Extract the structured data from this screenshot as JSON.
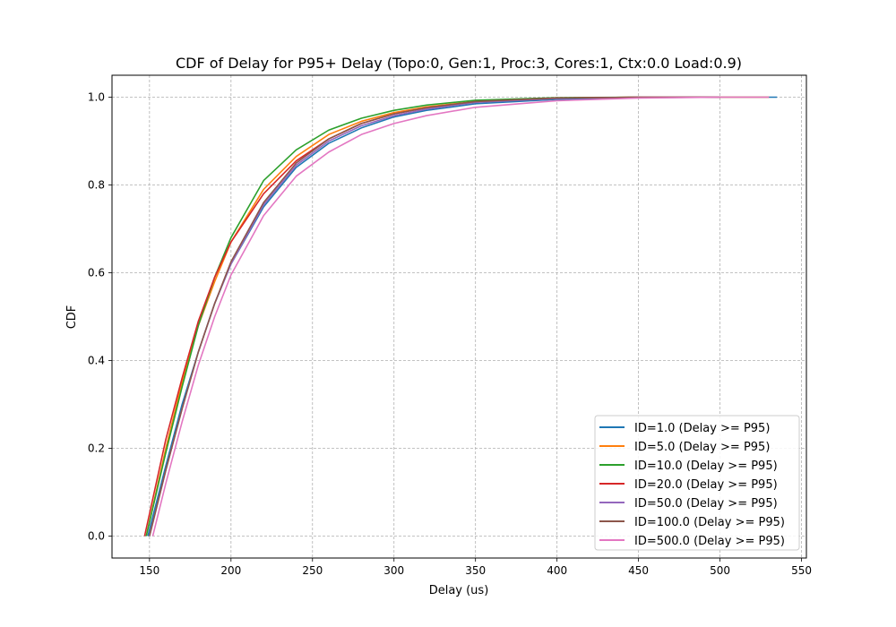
{
  "chart_data": {
    "type": "line",
    "title": "CDF of Delay for P95+ Delay (Topo:0, Gen:1, Proc:3, Cores:1, Ctx:0.0 Load:0.9)",
    "xlabel": "Delay (us)",
    "ylabel": "CDF",
    "xlim": [
      127,
      553
    ],
    "ylim": [
      -0.05,
      1.05
    ],
    "xticks": [
      150,
      200,
      250,
      300,
      350,
      400,
      450,
      500,
      550
    ],
    "yticks": [
      0.0,
      0.2,
      0.4,
      0.6,
      0.8,
      1.0
    ],
    "xtick_labels": [
      "150",
      "200",
      "250",
      "300",
      "350",
      "400",
      "450",
      "500",
      "550"
    ],
    "ytick_labels": [
      "0.0",
      "0.2",
      "0.4",
      "0.6",
      "0.8",
      "1.0"
    ],
    "grid": true,
    "legend_position": "lower-right",
    "series": [
      {
        "name": "ID=1.0 (Delay >= P95)",
        "color": "#1f77b4",
        "x": [
          149,
          160,
          170,
          180,
          190,
          200,
          220,
          240,
          260,
          280,
          300,
          320,
          350,
          400,
          450,
          500,
          535
        ],
        "y": [
          0.0,
          0.16,
          0.3,
          0.42,
          0.53,
          0.62,
          0.75,
          0.84,
          0.895,
          0.93,
          0.955,
          0.97,
          0.985,
          0.995,
          0.999,
          1.0,
          1.0
        ]
      },
      {
        "name": "ID=5.0 (Delay >= P95)",
        "color": "#ff7f0e",
        "x": [
          148,
          160,
          170,
          180,
          190,
          200,
          220,
          240,
          260,
          280,
          300,
          320,
          350,
          400,
          450,
          500,
          530
        ],
        "y": [
          0.0,
          0.2,
          0.35,
          0.48,
          0.58,
          0.67,
          0.79,
          0.865,
          0.915,
          0.945,
          0.965,
          0.978,
          0.99,
          0.998,
          1.0,
          1.0,
          1.0
        ]
      },
      {
        "name": "ID=10.0 (Delay >= P95)",
        "color": "#2ca02c",
        "x": [
          148,
          160,
          170,
          180,
          190,
          200,
          220,
          240,
          260,
          280,
          300,
          320,
          350,
          400,
          450
        ],
        "y": [
          0.0,
          0.19,
          0.34,
          0.48,
          0.59,
          0.68,
          0.81,
          0.88,
          0.925,
          0.952,
          0.97,
          0.982,
          0.993,
          0.999,
          1.0
        ]
      },
      {
        "name": "ID=20.0 (Delay >= P95)",
        "color": "#d62728",
        "x": [
          147,
          160,
          170,
          180,
          190,
          200,
          220,
          240,
          260,
          280,
          300,
          320,
          350,
          400,
          450,
          500
        ],
        "y": [
          0.0,
          0.22,
          0.36,
          0.49,
          0.59,
          0.67,
          0.78,
          0.855,
          0.905,
          0.94,
          0.962,
          0.976,
          0.99,
          0.998,
          1.0,
          1.0
        ]
      },
      {
        "name": "ID=50.0 (Delay >= P95)",
        "color": "#9467bd",
        "x": [
          150,
          160,
          170,
          180,
          190,
          200,
          220,
          240,
          260,
          280,
          300,
          320,
          350,
          400,
          450,
          500
        ],
        "y": [
          0.0,
          0.15,
          0.29,
          0.42,
          0.53,
          0.62,
          0.755,
          0.845,
          0.9,
          0.935,
          0.958,
          0.973,
          0.988,
          0.997,
          1.0,
          1.0
        ]
      },
      {
        "name": "ID=100.0 (Delay >= P95)",
        "color": "#8c564b",
        "x": [
          150,
          160,
          170,
          180,
          190,
          200,
          220,
          240,
          260,
          280,
          300,
          320,
          350,
          400,
          450,
          500
        ],
        "y": [
          0.0,
          0.15,
          0.29,
          0.42,
          0.53,
          0.625,
          0.76,
          0.85,
          0.905,
          0.94,
          0.962,
          0.976,
          0.99,
          0.998,
          1.0,
          1.0
        ]
      },
      {
        "name": "ID=500.0 (Delay >= P95)",
        "color": "#e377c2",
        "x": [
          152,
          160,
          170,
          180,
          190,
          200,
          220,
          240,
          260,
          280,
          300,
          320,
          350,
          400,
          450,
          500,
          530
        ],
        "y": [
          0.0,
          0.12,
          0.26,
          0.39,
          0.5,
          0.595,
          0.73,
          0.82,
          0.875,
          0.915,
          0.94,
          0.958,
          0.977,
          0.992,
          0.998,
          1.0,
          1.0
        ]
      }
    ]
  }
}
